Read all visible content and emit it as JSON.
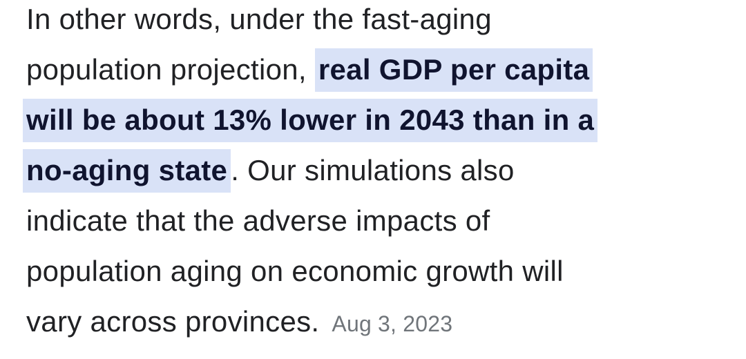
{
  "colors": {
    "text": "#202124",
    "highlight_background": "#d9e2f7",
    "highlight_text": "#10142f",
    "date_text": "#70757a",
    "page_background": "#ffffff"
  },
  "snippet": {
    "lines": [
      {
        "segments": [
          {
            "text": "In other words, under the fast-aging",
            "type": "normal"
          }
        ]
      },
      {
        "segments": [
          {
            "text": "population projection, ",
            "type": "normal"
          },
          {
            "text": "real GDP per capita",
            "type": "highlight"
          }
        ]
      },
      {
        "segments": [
          {
            "text": "will be about 13% lower in 2043 than in a",
            "type": "highlight"
          }
        ]
      },
      {
        "segments": [
          {
            "text": "no-aging state",
            "type": "highlight"
          },
          {
            "text": ". Our simulations also",
            "type": "normal"
          }
        ]
      },
      {
        "segments": [
          {
            "text": "indicate that the adverse impacts of",
            "type": "normal"
          }
        ]
      },
      {
        "segments": [
          {
            "text": "population aging on economic growth will",
            "type": "normal"
          }
        ]
      },
      {
        "segments": [
          {
            "text": "vary across provinces.",
            "type": "normal"
          }
        ]
      }
    ],
    "date": "Aug 3, 2023"
  }
}
